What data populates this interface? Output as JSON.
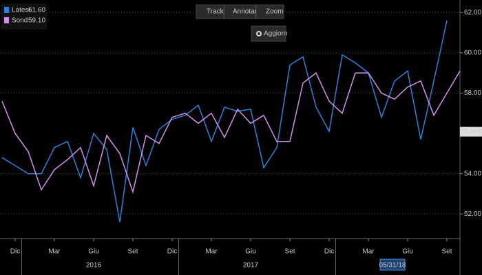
{
  "chart_data": {
    "type": "line",
    "categories": [
      null,
      "Dic",
      null,
      null,
      "Mar",
      null,
      null,
      "Giu",
      null,
      null,
      "Set",
      null,
      null,
      "Dic",
      null,
      null,
      "Mar",
      null,
      null,
      "Giu",
      null,
      null,
      "Set",
      null,
      null,
      "Dic",
      null,
      null,
      "Mar",
      null,
      null,
      "Giu",
      null,
      null,
      "Set",
      null
    ],
    "years": [
      "2016",
      "2017"
    ],
    "cursor_date": "05/31/18",
    "cursor_value": {
      "value": 56.0845,
      "label": "56.0845"
    },
    "series": [
      {
        "name": "Latest",
        "legend_value": "61.60",
        "color": "#2f80d8",
        "values": [
          54.8,
          54.4,
          54.0,
          54.0,
          55.3,
          55.6,
          53.8,
          56.0,
          55.2,
          51.6,
          56.3,
          54.4,
          56.2,
          56.7,
          56.9,
          57.4,
          55.6,
          57.3,
          57.1,
          57.2,
          54.3,
          55.3,
          59.4,
          59.8,
          57.3,
          56.1,
          59.9,
          59.5,
          59.0,
          56.8,
          58.6,
          59.1,
          55.7,
          58.6,
          61.6,
          null
        ]
      },
      {
        "name": "Sond",
        "legend_value": "59.10",
        "color": "#d490ea",
        "values": [
          57.6,
          56.0,
          55.1,
          53.2,
          54.2,
          54.7,
          55.3,
          53.4,
          55.9,
          55.0,
          53.1,
          55.9,
          55.5,
          56.8,
          57.0,
          56.5,
          57.0,
          55.8,
          57.2,
          56.5,
          56.9,
          55.6,
          55.6,
          58.5,
          59.0,
          57.6,
          57.0,
          59.0,
          59.0,
          58.0,
          57.7,
          58.3,
          58.6,
          56.9,
          58.0,
          59.1
        ]
      }
    ],
    "ylim": [
      50.85,
      62.45
    ],
    "yticks": [
      {
        "value": 52,
        "label": "52.00"
      },
      {
        "value": 54,
        "label": "54.00"
      },
      {
        "value": 58,
        "label": "58.00"
      },
      {
        "value": 60,
        "label": "60.00"
      },
      {
        "value": 62,
        "label": "62.00"
      }
    ],
    "grid": true
  },
  "toolbar": {
    "track": "Track",
    "annotate": "Annotare",
    "zoom": "Zoom",
    "refresh": "Aggiorn"
  }
}
